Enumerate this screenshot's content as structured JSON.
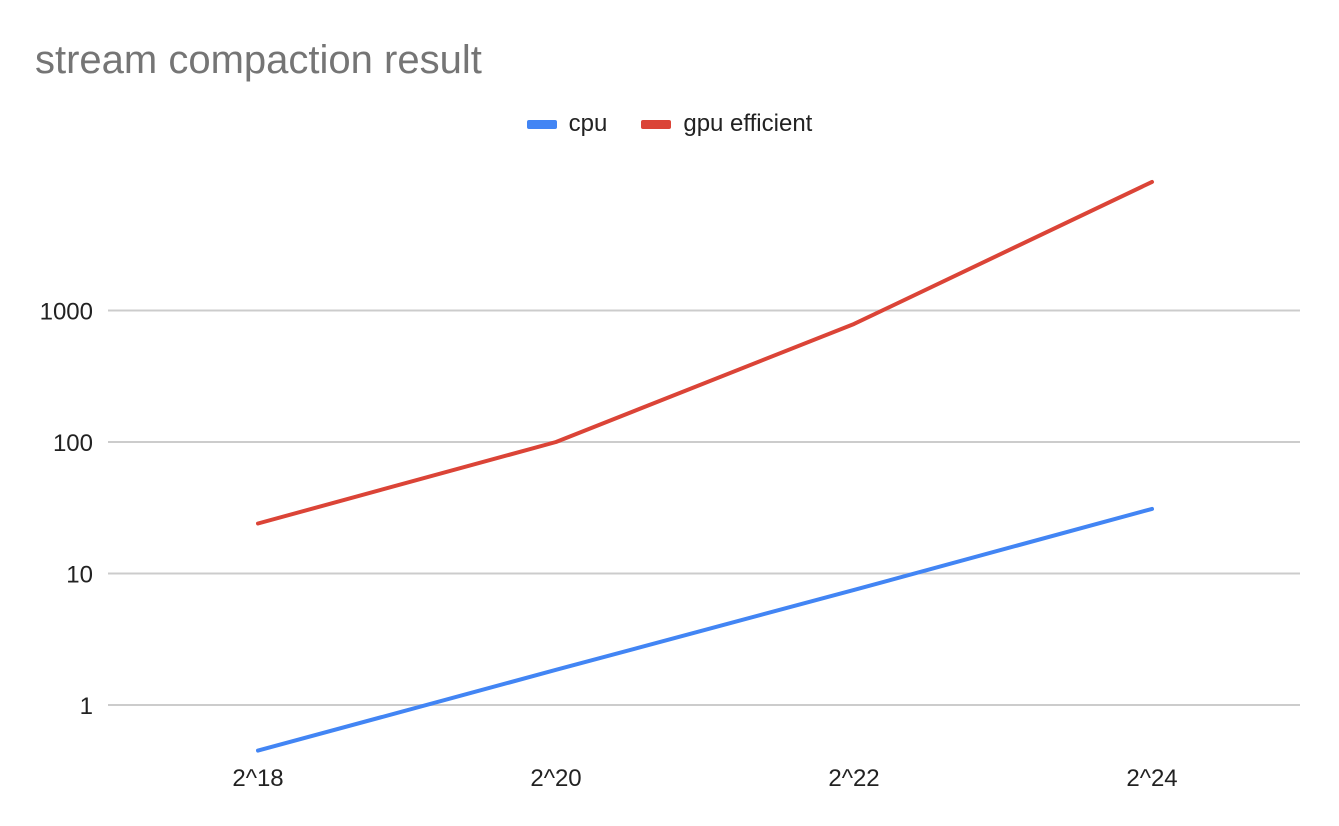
{
  "chart_data": {
    "type": "line",
    "title": "stream compaction result",
    "xlabel": "",
    "ylabel": "",
    "categories": [
      "2^18",
      "2^20",
      "2^22",
      "2^24"
    ],
    "y_scale": "log",
    "ylim": [
      0.4,
      12000
    ],
    "y_ticks": [
      1,
      10,
      100,
      1000
    ],
    "y_tick_labels": [
      "1",
      "10",
      "100",
      "1000"
    ],
    "grid": "horizontal",
    "legend_position": "top",
    "series": [
      {
        "name": "cpu",
        "color": "#4285f4",
        "values": [
          0.45,
          1.85,
          7.5,
          31
        ]
      },
      {
        "name": "gpu efficient",
        "color": "#db4437",
        "values": [
          24,
          100,
          790,
          9500
        ]
      }
    ]
  }
}
